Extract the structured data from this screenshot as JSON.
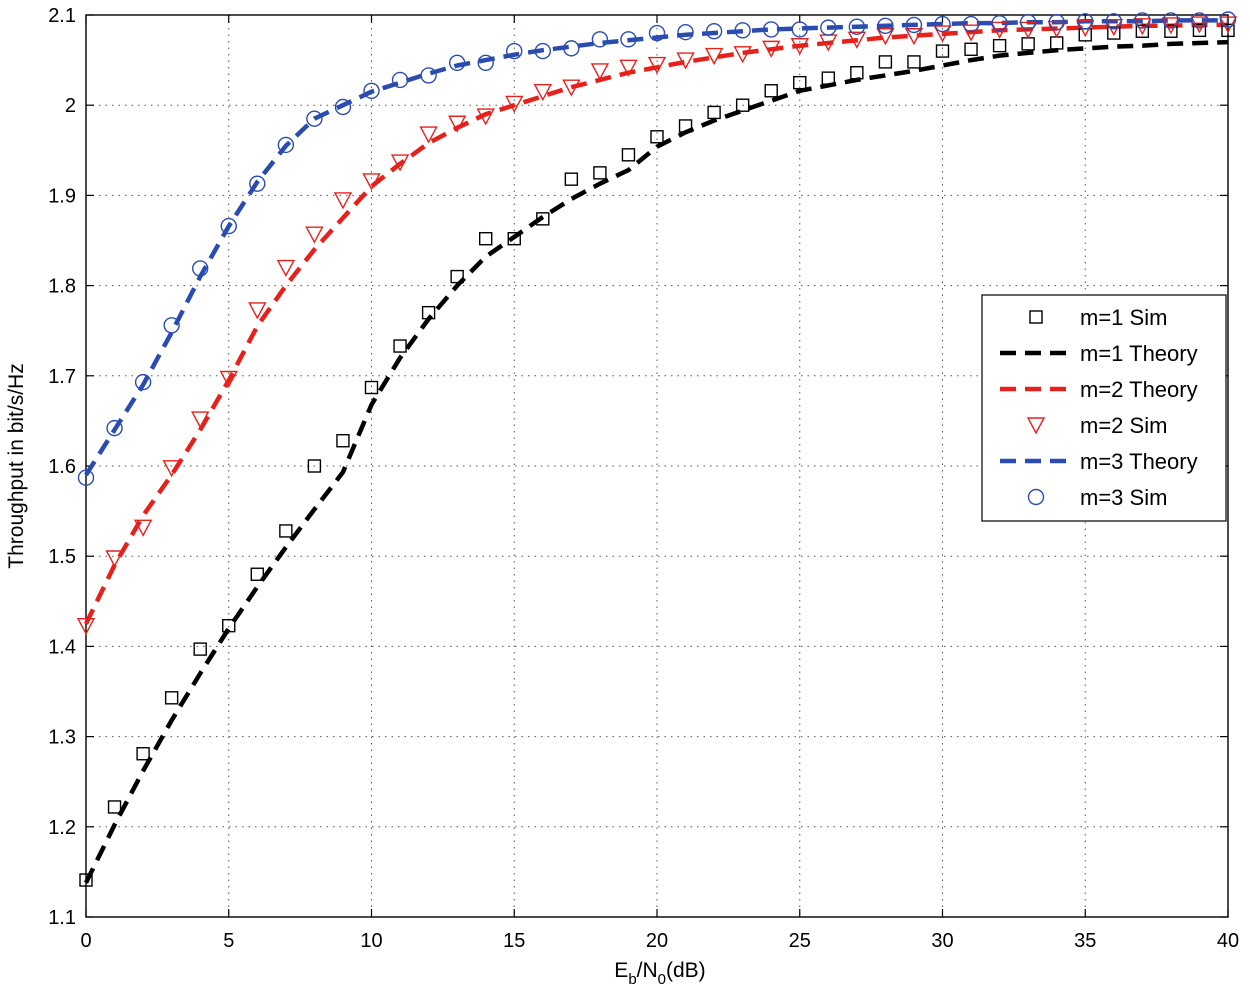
{
  "chart_data": {
    "type": "line",
    "title": "",
    "xlabel": {
      "base": "E",
      "sub1": "b",
      "mid": "/N",
      "sub2": "0",
      "tail": "(dB)"
    },
    "ylabel": "Throughput in bit/s/Hz",
    "xlim": [
      0,
      40
    ],
    "ylim": [
      1.1,
      2.1
    ],
    "xticks": [
      0,
      5,
      10,
      15,
      20,
      25,
      30,
      35,
      40
    ],
    "xtick_labels": [
      "0",
      "5",
      "10",
      "15",
      "20",
      "25",
      "30",
      "35",
      "40"
    ],
    "yticks": [
      1.1,
      1.2,
      1.3,
      1.4,
      1.5,
      1.6,
      1.7,
      1.8,
      1.9,
      2.0,
      2.1
    ],
    "ytick_labels": [
      "1.1",
      "1.2",
      "1.3",
      "1.4",
      "1.5",
      "1.6",
      "1.7",
      "1.8",
      "1.9",
      "2",
      "2.1"
    ],
    "grid": true,
    "legend_position": "right-middle",
    "x": [
      0,
      1,
      2,
      3,
      4,
      5,
      6,
      7,
      8,
      9,
      10,
      11,
      12,
      13,
      14,
      15,
      16,
      17,
      18,
      19,
      20,
      21,
      22,
      23,
      24,
      25,
      26,
      27,
      28,
      29,
      30,
      31,
      32,
      33,
      34,
      35,
      36,
      37,
      38,
      39,
      40
    ],
    "series": [
      {
        "name": "m=1 Sim",
        "kind": "marker",
        "marker": "square",
        "color": "#000000",
        "values": [
          1.141,
          1.222,
          1.281,
          1.343,
          1.397,
          1.423,
          1.48,
          1.528,
          1.6,
          1.628,
          1.687,
          1.733,
          1.77,
          1.81,
          1.852,
          1.852,
          1.874,
          1.918,
          1.925,
          1.945,
          1.965,
          1.977,
          1.992,
          2.0,
          2.016,
          2.025,
          2.03,
          2.036,
          2.048,
          2.048,
          2.06,
          2.062,
          2.066,
          2.068,
          2.069,
          2.078,
          2.08,
          2.082,
          2.082,
          2.083,
          2.083
        ]
      },
      {
        "name": "m=1 Theory",
        "kind": "line",
        "color": "#000000",
        "values": [
          1.138,
          1.202,
          1.262,
          1.318,
          1.37,
          1.42,
          1.466,
          1.51,
          1.552,
          1.593,
          1.668,
          1.72,
          1.763,
          1.8,
          1.832,
          1.854,
          1.876,
          1.896,
          1.913,
          1.928,
          1.954,
          1.97,
          1.983,
          1.994,
          2.005,
          2.016,
          2.022,
          2.028,
          2.033,
          2.038,
          2.044,
          2.05,
          2.055,
          2.058,
          2.061,
          2.063,
          2.065,
          2.066,
          2.068,
          2.069,
          2.07
        ]
      },
      {
        "name": "m=2 Theory",
        "kind": "line",
        "color": "#e8201c",
        "values": [
          1.425,
          1.49,
          1.545,
          1.59,
          1.64,
          1.695,
          1.755,
          1.8,
          1.84,
          1.875,
          1.91,
          1.935,
          1.958,
          1.975,
          1.99,
          2.0,
          2.01,
          2.02,
          2.028,
          2.036,
          2.042,
          2.048,
          2.053,
          2.058,
          2.062,
          2.066,
          2.069,
          2.072,
          2.075,
          2.077,
          2.079,
          2.081,
          2.083,
          2.084,
          2.085,
          2.086,
          2.087,
          2.088,
          2.088,
          2.089,
          2.089
        ]
      },
      {
        "name": "m=2 Sim",
        "kind": "marker",
        "marker": "triangle-down",
        "color": "#e8201c",
        "values": [
          1.423,
          1.498,
          1.532,
          1.598,
          1.652,
          1.697,
          1.773,
          1.82,
          1.857,
          1.895,
          1.916,
          1.937,
          1.968,
          1.98,
          1.988,
          2.002,
          2.015,
          2.02,
          2.038,
          2.042,
          2.045,
          2.05,
          2.055,
          2.057,
          2.063,
          2.066,
          2.07,
          2.073,
          2.077,
          2.077,
          2.08,
          2.081,
          2.084,
          2.084,
          2.085,
          2.086,
          2.087,
          2.088,
          2.089,
          2.09,
          2.09
        ]
      },
      {
        "name": "m=3 Theory",
        "kind": "line",
        "color": "#2a4cb0",
        "values": [
          1.59,
          1.64,
          1.69,
          1.748,
          1.81,
          1.866,
          1.915,
          1.955,
          1.985,
          2.0,
          2.015,
          2.025,
          2.035,
          2.044,
          2.05,
          2.056,
          2.061,
          2.065,
          2.069,
          2.072,
          2.075,
          2.078,
          2.08,
          2.082,
          2.084,
          2.085,
          2.086,
          2.087,
          2.088,
          2.089,
          2.09,
          2.091,
          2.091,
          2.092,
          2.092,
          2.093,
          2.093,
          2.093,
          2.094,
          2.094,
          2.094
        ]
      },
      {
        "name": "m=3 Sim",
        "kind": "marker",
        "marker": "circle",
        "color": "#2a4cb0",
        "values": [
          1.587,
          1.642,
          1.693,
          1.756,
          1.819,
          1.866,
          1.913,
          1.956,
          1.985,
          1.998,
          2.016,
          2.028,
          2.033,
          2.047,
          2.047,
          2.06,
          2.06,
          2.063,
          2.073,
          2.073,
          2.08,
          2.081,
          2.082,
          2.083,
          2.084,
          2.084,
          2.086,
          2.087,
          2.088,
          2.089,
          2.09,
          2.09,
          2.091,
          2.092,
          2.092,
          2.093,
          2.093,
          2.094,
          2.094,
          2.094,
          2.095
        ]
      }
    ]
  }
}
